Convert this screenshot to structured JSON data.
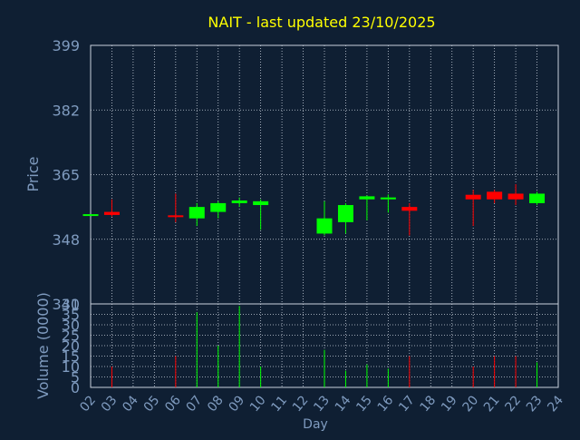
{
  "chart_data": {
    "type": "candlestick",
    "title": "NAIT - last updated 23/10/2025",
    "xlabel": "Day",
    "colors": {
      "background": "#0f1f33",
      "axis_text": "#7f9bbf",
      "title": "#ffff00",
      "grid": "#c8d0dc",
      "up": "#00ff00",
      "down": "#ff0000"
    },
    "price_panel": {
      "ylabel": "Price",
      "ylim": [
        331,
        399
      ],
      "yticks": [
        399,
        382,
        365,
        348,
        331
      ],
      "grid": true
    },
    "volume_panel": {
      "ylabel": "Volume (0000)",
      "ylim": [
        0,
        40
      ],
      "yticks": [
        40,
        35,
        30,
        25,
        20,
        15,
        10,
        5,
        0
      ],
      "grid": true
    },
    "x_ticks": [
      "02",
      "03",
      "04",
      "05",
      "06",
      "07",
      "08",
      "09",
      "10",
      "11",
      "12",
      "13",
      "14",
      "15",
      "16",
      "17",
      "18",
      "19",
      "20",
      "21",
      "22",
      "23",
      "24"
    ],
    "candles": [
      {
        "day": "02",
        "open": 354.6,
        "high": 354.6,
        "low": 354.6,
        "close": 354.6,
        "volume": 0
      },
      {
        "day": "03",
        "open": 355.2,
        "high": 358.5,
        "low": 354.0,
        "close": 354.4,
        "volume": 10
      },
      {
        "day": "06",
        "open": 354.3,
        "high": 360.0,
        "low": 352.5,
        "close": 353.9,
        "volume": 15
      },
      {
        "day": "07",
        "open": 353.5,
        "high": 357.5,
        "low": 351.5,
        "close": 356.5,
        "volume": 36
      },
      {
        "day": "08",
        "open": 355.2,
        "high": 358.0,
        "low": 353.5,
        "close": 357.5,
        "volume": 20
      },
      {
        "day": "09",
        "open": 357.5,
        "high": 359.0,
        "low": 356.5,
        "close": 358.2,
        "volume": 39
      },
      {
        "day": "10",
        "open": 357.0,
        "high": 358.5,
        "low": 350.5,
        "close": 358.0,
        "volume": 10
      },
      {
        "day": "13",
        "open": 349.5,
        "high": 358.0,
        "low": 349.0,
        "close": 353.5,
        "volume": 18
      },
      {
        "day": "14",
        "open": 352.5,
        "high": 357.5,
        "low": 349.5,
        "close": 357.0,
        "volume": 8
      },
      {
        "day": "15",
        "open": 358.5,
        "high": 359.5,
        "low": 353.0,
        "close": 359.3,
        "volume": 11
      },
      {
        "day": "16",
        "open": 358.5,
        "high": 359.8,
        "low": 355.0,
        "close": 359.0,
        "volume": 9
      },
      {
        "day": "17",
        "open": 356.5,
        "high": 357.5,
        "low": 349.0,
        "close": 355.5,
        "volume": 15
      },
      {
        "day": "20",
        "open": 359.7,
        "high": 361.0,
        "low": 351.5,
        "close": 358.5,
        "volume": 10
      },
      {
        "day": "21",
        "open": 360.5,
        "high": 361.0,
        "low": 357.5,
        "close": 358.5,
        "volume": 15
      },
      {
        "day": "22",
        "open": 360.0,
        "high": 362.5,
        "low": 357.0,
        "close": 358.5,
        "volume": 15
      },
      {
        "day": "23",
        "open": 357.5,
        "high": 360.5,
        "low": 357.0,
        "close": 360.0,
        "volume": 12
      }
    ]
  }
}
